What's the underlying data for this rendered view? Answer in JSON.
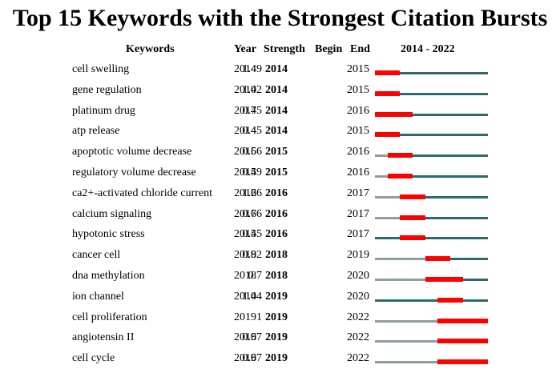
{
  "chart_data": {
    "type": "table",
    "title": "Top 15 Keywords with the Strongest Citation Bursts",
    "columns": [
      "Keywords",
      "Year",
      "Strength",
      "Begin",
      "End",
      "2014 - 2022"
    ],
    "timeline_range": [
      2014,
      2022
    ],
    "colors": {
      "burst": "#ff0000",
      "active": "#2b6b6b",
      "inactive": "#8f9c9c"
    },
    "rows": [
      {
        "keyword": "cell swelling",
        "year": "2014",
        "strength": "1.49",
        "begin": "2014",
        "end": "2015"
      },
      {
        "keyword": "gene regulation",
        "year": "2014",
        "strength": "1.02",
        "begin": "2014",
        "end": "2015"
      },
      {
        "keyword": "platinum drug",
        "year": "2014",
        "strength": "0.75",
        "begin": "2014",
        "end": "2016"
      },
      {
        "keyword": "atp release",
        "year": "2014",
        "strength": "0.45",
        "begin": "2014",
        "end": "2015"
      },
      {
        "keyword": "apoptotic volume decrease",
        "year": "2015",
        "strength": "0.66",
        "begin": "2015",
        "end": "2016"
      },
      {
        "keyword": "regulatory volume decrease",
        "year": "2015",
        "strength": "0.49",
        "begin": "2015",
        "end": "2016"
      },
      {
        "keyword": "ca2+-activated chloride current",
        "year": "2016",
        "strength": "1.26",
        "begin": "2016",
        "end": "2017"
      },
      {
        "keyword": "calcium signaling",
        "year": "2016",
        "strength": "0.76",
        "begin": "2016",
        "end": "2017"
      },
      {
        "keyword": "hypotonic stress",
        "year": "2014",
        "strength": "0.55",
        "begin": "2016",
        "end": "2017"
      },
      {
        "keyword": "cancer cell",
        "year": "2018",
        "strength": "0.92",
        "begin": "2018",
        "end": "2019"
      },
      {
        "keyword": "dna methylation",
        "year": "2018",
        "strength": "0.7",
        "begin": "2018",
        "end": "2020"
      },
      {
        "keyword": "ion channel",
        "year": "2014",
        "strength": "1.04",
        "begin": "2019",
        "end": "2020"
      },
      {
        "keyword": "cell proliferation",
        "year": "2019",
        "strength": "1",
        "begin": "2019",
        "end": "2022"
      },
      {
        "keyword": "angiotensin II",
        "year": "2019",
        "strength": "0.67",
        "begin": "2019",
        "end": "2022"
      },
      {
        "keyword": "cell cycle",
        "year": "2019",
        "strength": "0.67",
        "begin": "2019",
        "end": "2022"
      }
    ]
  }
}
